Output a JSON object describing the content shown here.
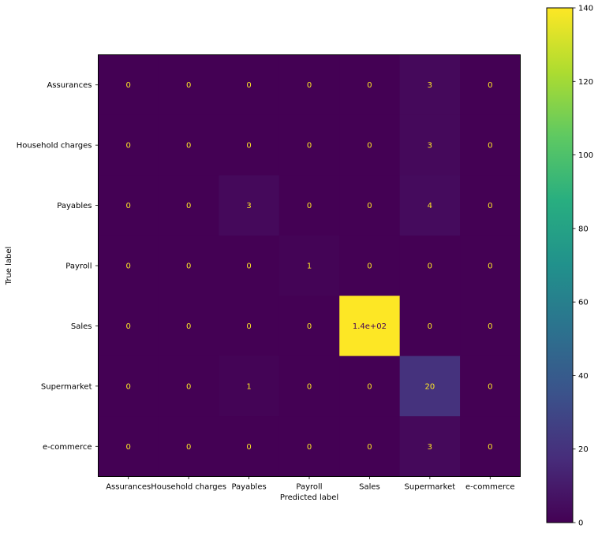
{
  "chart_data": {
    "type": "heatmap",
    "title": "",
    "xlabel": "Predicted label",
    "ylabel": "True label",
    "x_categories": [
      "Assurances",
      "Household charges",
      "Payables",
      "Payroll",
      "Sales",
      "Supermarket",
      "e-commerce"
    ],
    "y_categories": [
      "Assurances",
      "Household charges",
      "Payables",
      "Payroll",
      "Sales",
      "Supermarket",
      "e-commerce"
    ],
    "values": [
      [
        0,
        0,
        0,
        0,
        0,
        3,
        0
      ],
      [
        0,
        0,
        0,
        0,
        0,
        3,
        0
      ],
      [
        0,
        0,
        3,
        0,
        0,
        4,
        0
      ],
      [
        0,
        0,
        0,
        1,
        0,
        0,
        0
      ],
      [
        0,
        0,
        0,
        0,
        140,
        0,
        0
      ],
      [
        0,
        0,
        1,
        0,
        0,
        20,
        0
      ],
      [
        0,
        0,
        0,
        0,
        0,
        3,
        0
      ]
    ],
    "cell_labels": [
      [
        "0",
        "0",
        "0",
        "0",
        "0",
        "3",
        "0"
      ],
      [
        "0",
        "0",
        "0",
        "0",
        "0",
        "3",
        "0"
      ],
      [
        "0",
        "0",
        "3",
        "0",
        "0",
        "4",
        "0"
      ],
      [
        "0",
        "0",
        "0",
        "1",
        "0",
        "0",
        "0"
      ],
      [
        "0",
        "0",
        "0",
        "0",
        "1.4e+02",
        "0",
        "0"
      ],
      [
        "0",
        "0",
        "1",
        "0",
        "0",
        "20",
        "0"
      ],
      [
        "0",
        "0",
        "0",
        "0",
        "0",
        "3",
        "0"
      ]
    ],
    "colormap": "viridis",
    "color_range": [
      0,
      140
    ],
    "colorbar_ticks": [
      0,
      20,
      40,
      60,
      80,
      100,
      120,
      140
    ],
    "low_text_color": "#fde725",
    "high_text_color": "#440154",
    "grid": false
  }
}
